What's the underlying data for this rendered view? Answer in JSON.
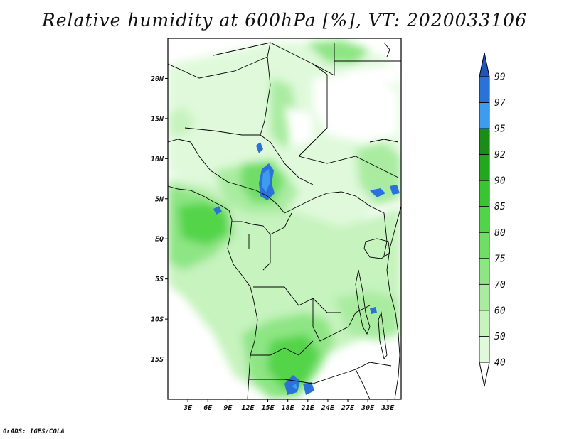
{
  "title": "Relative humidity at 600hPa [%], VT: 2020033106",
  "credit": "GrADS: IGES/COLA",
  "map": {
    "variable": "Relative humidity",
    "level": "600hPa",
    "units": "%",
    "valid_time": "2020033106",
    "lon_range": [
      0,
      35
    ],
    "lat_range": [
      -20,
      25
    ],
    "lat_ticks": [
      "20N",
      "15N",
      "10N",
      "5N",
      "EQ",
      "5S",
      "10S",
      "15S"
    ],
    "lon_ticks": [
      "3E",
      "6E",
      "9E",
      "12E",
      "15E",
      "18E",
      "21E",
      "24E",
      "27E",
      "30E",
      "33E"
    ]
  },
  "colorbar": {
    "levels": [
      "40",
      "50",
      "60",
      "70",
      "75",
      "80",
      "85",
      "90",
      "92",
      "95",
      "97",
      "99"
    ],
    "colors": [
      "#f2fdf0",
      "#dff9da",
      "#c6f3be",
      "#a9eca0",
      "#8ee584",
      "#6fdd66",
      "#52d44a",
      "#3bc432",
      "#22a81e",
      "#1a8c18",
      "#3d9cf0",
      "#2b72d8",
      "#1d55c0"
    ]
  }
}
